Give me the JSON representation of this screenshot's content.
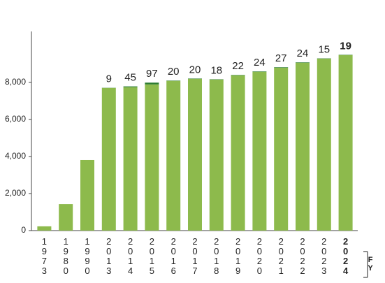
{
  "chart_data": {
    "type": "stacked_bar",
    "categories": [
      "1973",
      "1980",
      "1990",
      "2013",
      "2014",
      "2015",
      "2016",
      "2017",
      "2018",
      "2019",
      "2020",
      "2021",
      "2022",
      "2023",
      "2024"
    ],
    "series": [
      {
        "color": "#8dba4c",
        "values": [
          230,
          1430,
          3810,
          7700,
          7740,
          7890,
          8080,
          8190,
          8150,
          8380,
          8570,
          8790,
          9060,
          9280,
          9470
        ]
      },
      {
        "color": "#2e7d32",
        "values": [
          null,
          null,
          null,
          9,
          45,
          97,
          20,
          20,
          18,
          22,
          24,
          27,
          24,
          15,
          19
        ]
      }
    ],
    "xlabel": "FY",
    "ylim": [
      0,
      10750
    ],
    "yticks": [
      0,
      {
        "value": 2000,
        "label": "2,000"
      },
      {
        "value": 4000,
        "label": "4,000"
      },
      {
        "value": 6000,
        "label": "6,000"
      },
      {
        "value": 8000,
        "label": "8,000"
      }
    ]
  }
}
